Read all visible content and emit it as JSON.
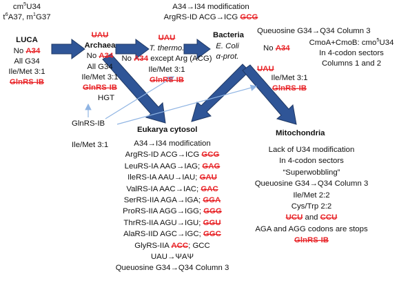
{
  "luca": {
    "mod1_pre": "cm",
    "mod1_sup": "5",
    "mod1_post": "U34",
    "mod2_a": "t",
    "mod2_a_sup": "6",
    "mod2_b": "A37, m",
    "mod2_b_sup": "1",
    "mod2_c": "G37",
    "title": "LUCA",
    "line_no": "No",
    "line_no_red": "A34",
    "line_g34": "All G34",
    "line_ile": "Ile/Met 3:1",
    "line_glnrs": "GlnRS-IB"
  },
  "archaea": {
    "uau": "UAU",
    "title": "Archaea",
    "line_no": "No",
    "line_no_red": "A34",
    "line_g34": "All G34",
    "line_ile": "Ile/Met 3:1",
    "line_glnrs": "GlnRS-IB"
  },
  "thermo": {
    "uau": "UAU",
    "title": "T. thermo.",
    "line_no_pre": "No",
    "line_no_red": "A34",
    "line_no_post": "except Arg (ACG)",
    "line_ile": "Ile/Met 3:1",
    "line_glnrs": "GlnRS-IB"
  },
  "bacteria": {
    "top1": "A34→I34 modification",
    "top2_pre": "ArgRS-ID ACG→ICG",
    "top2_red": "GCG",
    "title": "Bacteria",
    "ecoli1": "E. Coli",
    "ecoli2": "α-prot.",
    "queuosine": "Queuosine G34→Q34 Column 3",
    "no_pre": "No",
    "no_red": "A34",
    "cmoa_pre": "CmoA+CmoB: cmo",
    "cmoa_sup": "5",
    "cmoa_post": "U34",
    "sectors1": "In 4-codon sectors",
    "sectors2": "Columns 1 and 2",
    "uau": "UAU",
    "ile": "Ile/Met 3:1",
    "glnrs": "GlnRS-IB"
  },
  "hgt": {
    "label": "HGT",
    "glnrs": "GlnRS-IB",
    "ile": "Ile/Met 3:1"
  },
  "eukarya": {
    "title": "Eukarya cytosol",
    "lines": [
      {
        "text": "A34→I34 modification",
        "red": ""
      },
      {
        "text": "ArgRS-ID ACG→ICG",
        "red": "GCG"
      },
      {
        "text": "LeuRS-IA AAG→IAG;",
        "red": "GAG"
      },
      {
        "text": "IleRS-IA AAU→IAU;",
        "red": "GAU"
      },
      {
        "text": "ValRS-IA AAC→IAC;",
        "red": "GAC"
      },
      {
        "text": "SerRS-IIA AGA→IGA;",
        "red": "GGA"
      },
      {
        "text": "ProRS-IIA AGG→IGG;",
        "red": "GGG"
      },
      {
        "text": "ThrRS-IIA AGU→IGU;",
        "red": "GGU"
      },
      {
        "text": "AlaRS-IID AGC→IGC;",
        "red": "GGC"
      }
    ],
    "gly_pre": "GlyRS-IIA",
    "gly_red": "ACC",
    "gly_post": "; GCC",
    "psi": "UAU→ΨAΨ",
    "queuosine": "Queuosine G34→Q34 Column 3"
  },
  "mito": {
    "title": "Mitochondria",
    "l1": "Lack of U34 modification",
    "l2": "In 4-codon sectors",
    "l3": "“Superwobbling”",
    "l4": "Queuosine G34→Q34 Column 3",
    "l5": "Ile/Met 2:2",
    "l6": "Cys/Trp 2:2",
    "l7_red1": "UCU",
    "l7_mid": "and",
    "l7_red2": "CCU",
    "l8": "AGA and AGG codons are stops",
    "l9_red": "GlnRS-IB"
  },
  "colors": {
    "arrow_fill": "#2f5597",
    "arrow_edge": "#1f3864",
    "hgt_line": "#8fb4e3",
    "strike": "#e8262a"
  }
}
